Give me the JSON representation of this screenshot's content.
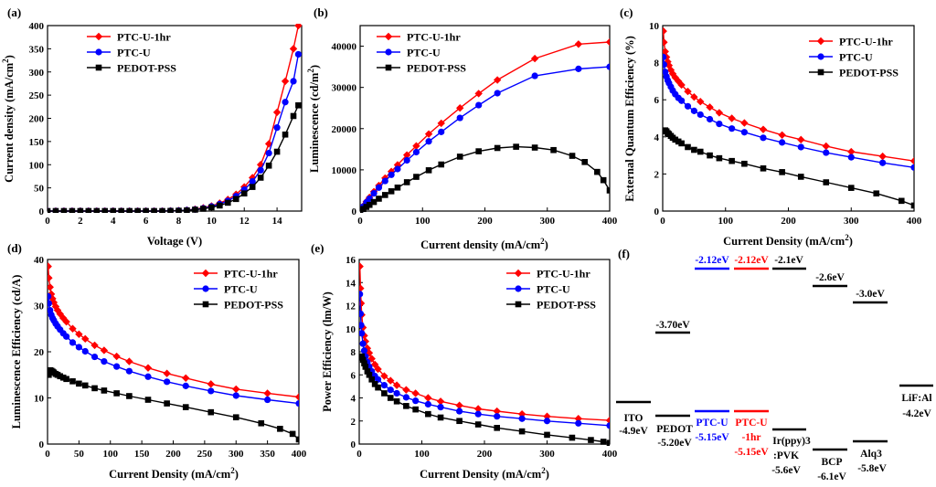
{
  "colors": {
    "red": "#ff0000",
    "blue": "#0000ff",
    "black": "#000000"
  },
  "chart_data": [
    {
      "id": "a",
      "type": "line",
      "panel_label": "(a)",
      "xlabel": "Voltage (V)",
      "ylabel": "Current density (mA/cm²)",
      "xlim": [
        0,
        15.5
      ],
      "ylim": [
        0,
        400
      ],
      "xticks": [
        0,
        2,
        4,
        6,
        8,
        10,
        12,
        14
      ],
      "yticks": [
        0,
        50,
        100,
        150,
        200,
        250,
        300,
        350,
        400
      ],
      "legend_position": "top-left",
      "series": [
        {
          "name": "PTC-U-1hr",
          "color": "#ff0000",
          "marker": "diamond",
          "x": [
            0,
            0.5,
            1,
            1.5,
            2,
            2.5,
            3,
            3.5,
            4,
            4.5,
            5,
            5.5,
            6,
            6.5,
            7,
            7.5,
            8,
            8.5,
            9,
            9.5,
            10,
            10.5,
            11,
            11.5,
            12,
            12.5,
            13,
            13.5,
            14,
            14.5,
            15,
            15.3
          ],
          "y": [
            0,
            0,
            0,
            0,
            0,
            0,
            0,
            0,
            0,
            0,
            0,
            0,
            0,
            0,
            0,
            0.5,
            1,
            2,
            4,
            7,
            11,
            17,
            25,
            36,
            52,
            72,
            100,
            145,
            213,
            280,
            350,
            400
          ]
        },
        {
          "name": "PTC-U",
          "color": "#0000ff",
          "marker": "circle",
          "x": [
            0,
            0.5,
            1,
            1.5,
            2,
            2.5,
            3,
            3.5,
            4,
            4.5,
            5,
            5.5,
            6,
            6.5,
            7,
            7.5,
            8,
            8.5,
            9,
            9.5,
            10,
            10.5,
            11,
            11.5,
            12,
            12.5,
            13,
            13.5,
            14,
            14.5,
            15,
            15.3
          ],
          "y": [
            0,
            0,
            0,
            0,
            0,
            0,
            0,
            0,
            0,
            0,
            0,
            0,
            0,
            0,
            0,
            0.5,
            1,
            2,
            3.5,
            6,
            10,
            15,
            22,
            32,
            46,
            64,
            88,
            125,
            180,
            235,
            280,
            338
          ]
        },
        {
          "name": "PEDOT-PSS",
          "color": "#000000",
          "marker": "square",
          "x": [
            0,
            0.5,
            1,
            1.5,
            2,
            2.5,
            3,
            3.5,
            4,
            4.5,
            5,
            5.5,
            6,
            6.5,
            7,
            7.5,
            8,
            8.5,
            9,
            9.5,
            10,
            10.5,
            11,
            11.5,
            12,
            12.5,
            13,
            13.5,
            14,
            14.5,
            15,
            15.3
          ],
          "y": [
            0,
            0,
            0,
            0,
            0,
            0,
            0,
            0,
            0,
            0,
            0,
            0,
            0,
            0,
            0,
            0.3,
            0.7,
            1.5,
            3,
            5,
            8,
            12,
            18,
            26,
            38,
            52,
            72,
            98,
            128,
            165,
            205,
            228
          ]
        }
      ]
    },
    {
      "id": "b",
      "type": "line",
      "panel_label": "(b)",
      "xlabel": "Current density (mA/cm²)",
      "ylabel": "Luminescence (cd/m²)",
      "xlim": [
        0,
        400
      ],
      "ylim": [
        0,
        45000
      ],
      "xticks": [
        0,
        100,
        200,
        300,
        400
      ],
      "yticks": [
        0,
        10000,
        20000,
        30000,
        40000
      ],
      "legend_position": "top-left",
      "series": [
        {
          "name": "PTC-U-1hr",
          "color": "#ff0000",
          "marker": "diamond",
          "x": [
            0,
            5,
            10,
            15,
            22,
            30,
            40,
            50,
            60,
            75,
            90,
            110,
            130,
            160,
            190,
            220,
            280,
            350,
            400
          ],
          "y": [
            0,
            1200,
            2300,
            3300,
            4700,
            6200,
            8000,
            9600,
            11200,
            13600,
            15800,
            18700,
            21300,
            25000,
            28500,
            31800,
            37000,
            40500,
            41000
          ]
        },
        {
          "name": "PTC-U",
          "color": "#0000ff",
          "marker": "circle",
          "x": [
            0,
            5,
            10,
            15,
            22,
            30,
            40,
            50,
            60,
            75,
            90,
            110,
            130,
            160,
            190,
            220,
            280,
            350,
            400
          ],
          "y": [
            0,
            1100,
            2100,
            3000,
            4300,
            5700,
            7300,
            8800,
            10200,
            12300,
            14300,
            16900,
            19200,
            22600,
            25700,
            28600,
            32800,
            34500,
            35000
          ]
        },
        {
          "name": "PEDOT-PSS",
          "color": "#000000",
          "marker": "square",
          "x": [
            0,
            5,
            10,
            15,
            22,
            30,
            40,
            50,
            60,
            75,
            90,
            110,
            130,
            160,
            190,
            220,
            250,
            280,
            310,
            340,
            360,
            380,
            390,
            400
          ],
          "y": [
            0,
            500,
            1000,
            1500,
            2200,
            3000,
            3900,
            4800,
            5700,
            7000,
            8300,
            9900,
            11300,
            13200,
            14500,
            15300,
            15600,
            15400,
            14800,
            13400,
            11900,
            9500,
            7500,
            5000
          ]
        }
      ]
    },
    {
      "id": "c",
      "type": "line",
      "panel_label": "(c)",
      "xlabel": "Current Density (mA/cm²)",
      "ylabel": "External Quantum Efficiency (%)",
      "xlim": [
        0,
        400
      ],
      "ylim": [
        0,
        10
      ],
      "xticks": [
        0,
        100,
        200,
        300,
        400
      ],
      "yticks": [
        0,
        2,
        4,
        6,
        8,
        10
      ],
      "legend_position": "top-right",
      "series": [
        {
          "name": "PTC-U-1hr",
          "color": "#ff0000",
          "marker": "diamond",
          "x": [
            1,
            2,
            4,
            6,
            8,
            10,
            13,
            16,
            20,
            25,
            30,
            40,
            50,
            60,
            75,
            90,
            110,
            130,
            160,
            190,
            220,
            260,
            300,
            350,
            400
          ],
          "y": [
            9.7,
            9.1,
            8.6,
            8.3,
            8.05,
            7.85,
            7.6,
            7.4,
            7.2,
            7.0,
            6.8,
            6.45,
            6.15,
            5.9,
            5.6,
            5.3,
            5.0,
            4.75,
            4.4,
            4.1,
            3.85,
            3.5,
            3.2,
            2.95,
            2.7
          ]
        },
        {
          "name": "PTC-U",
          "color": "#0000ff",
          "marker": "circle",
          "x": [
            1,
            2,
            4,
            6,
            8,
            10,
            13,
            16,
            20,
            25,
            30,
            40,
            50,
            60,
            75,
            90,
            110,
            130,
            160,
            190,
            220,
            260,
            300,
            350,
            400
          ],
          "y": [
            8.3,
            7.9,
            7.5,
            7.25,
            7.05,
            6.9,
            6.7,
            6.5,
            6.3,
            6.1,
            5.95,
            5.65,
            5.4,
            5.2,
            4.95,
            4.7,
            4.45,
            4.25,
            3.95,
            3.7,
            3.45,
            3.15,
            2.9,
            2.6,
            2.35
          ]
        },
        {
          "name": "PEDOT-PSS",
          "color": "#000000",
          "marker": "square",
          "x": [
            2,
            4,
            6,
            8,
            10,
            13,
            16,
            20,
            25,
            30,
            40,
            50,
            60,
            75,
            90,
            110,
            130,
            160,
            190,
            220,
            260,
            300,
            340,
            380,
            400
          ],
          "y": [
            4.3,
            4.35,
            4.3,
            4.2,
            4.15,
            4.05,
            3.95,
            3.85,
            3.75,
            3.65,
            3.45,
            3.3,
            3.2,
            3.0,
            2.85,
            2.7,
            2.55,
            2.3,
            2.1,
            1.85,
            1.55,
            1.25,
            0.95,
            0.55,
            0.3
          ]
        }
      ]
    },
    {
      "id": "d",
      "type": "line",
      "panel_label": "(d)",
      "xlabel": "Current Density (mA/cm²)",
      "ylabel": "Luminescence Efficiency (cd/A)",
      "xlim": [
        0,
        400
      ],
      "ylim": [
        0,
        40
      ],
      "xticks": [
        0,
        50,
        100,
        150,
        200,
        250,
        300,
        350,
        400
      ],
      "yticks": [
        0,
        10,
        20,
        30,
        40
      ],
      "legend_position": "top-right",
      "series": [
        {
          "name": "PTC-U-1hr",
          "color": "#ff0000",
          "marker": "diamond",
          "x": [
            1,
            2,
            4,
            6,
            8,
            10,
            13,
            16,
            20,
            25,
            30,
            40,
            50,
            60,
            75,
            90,
            110,
            130,
            160,
            190,
            220,
            260,
            300,
            350,
            400
          ],
          "y": [
            38.5,
            36,
            34,
            32.5,
            31.5,
            30.7,
            29.8,
            29,
            28.2,
            27.3,
            26.5,
            25,
            23.8,
            22.8,
            21.4,
            20.3,
            19,
            17.9,
            16.5,
            15.3,
            14.3,
            13,
            11.9,
            11,
            10.2
          ]
        },
        {
          "name": "PTC-U",
          "color": "#0000ff",
          "marker": "circle",
          "x": [
            1,
            2,
            4,
            6,
            8,
            10,
            13,
            16,
            20,
            25,
            30,
            40,
            50,
            60,
            75,
            90,
            110,
            130,
            160,
            190,
            220,
            260,
            300,
            350,
            400
          ],
          "y": [
            32,
            30.5,
            29,
            28,
            27.3,
            26.8,
            26.1,
            25.5,
            24.8,
            24,
            23.3,
            22,
            21,
            20.1,
            18.9,
            17.9,
            16.8,
            15.8,
            14.6,
            13.5,
            12.6,
            11.5,
            10.5,
            9.6,
            8.8
          ]
        },
        {
          "name": "PEDOT-PSS",
          "color": "#000000",
          "marker": "square",
          "x": [
            2,
            4,
            6,
            8,
            10,
            13,
            16,
            20,
            25,
            30,
            40,
            50,
            60,
            75,
            90,
            110,
            130,
            160,
            190,
            220,
            260,
            300,
            340,
            370,
            390,
            400
          ],
          "y": [
            15,
            16,
            15.9,
            15.7,
            15.5,
            15.2,
            15,
            14.7,
            14.4,
            14.1,
            13.6,
            13.1,
            12.7,
            12.1,
            11.6,
            11,
            10.4,
            9.6,
            8.8,
            8,
            6.9,
            5.8,
            4.5,
            3.3,
            2.2,
            1
          ]
        }
      ]
    },
    {
      "id": "e",
      "type": "line",
      "panel_label": "(e)",
      "xlabel": "Current Density (mA/cm²)",
      "ylabel": "Power Efficiency (lm/W)",
      "xlim": [
        0,
        400
      ],
      "ylim": [
        0,
        16
      ],
      "xticks": [
        0,
        100,
        200,
        300,
        400
      ],
      "yticks": [
        0,
        2,
        4,
        6,
        8,
        10,
        12,
        14,
        16
      ],
      "legend_position": "top-right",
      "series": [
        {
          "name": "PTC-U-1hr",
          "color": "#ff0000",
          "marker": "diamond",
          "x": [
            1,
            2,
            3,
            4,
            6,
            8,
            10,
            13,
            16,
            20,
            25,
            30,
            40,
            50,
            60,
            75,
            90,
            110,
            130,
            160,
            190,
            220,
            260,
            300,
            350,
            400
          ],
          "y": [
            15.4,
            13.5,
            12.2,
            11.2,
            10.1,
            9.4,
            8.9,
            8.3,
            7.9,
            7.4,
            6.9,
            6.5,
            5.9,
            5.5,
            5.1,
            4.7,
            4.4,
            4.0,
            3.7,
            3.35,
            3.05,
            2.85,
            2.6,
            2.4,
            2.2,
            2.05
          ]
        },
        {
          "name": "PTC-U",
          "color": "#0000ff",
          "marker": "circle",
          "x": [
            1,
            2,
            3,
            4,
            6,
            8,
            10,
            13,
            16,
            20,
            25,
            30,
            40,
            50,
            60,
            75,
            90,
            110,
            130,
            160,
            190,
            220,
            260,
            300,
            350,
            400
          ],
          "y": [
            13,
            11.3,
            10.3,
            9.6,
            8.7,
            8.1,
            7.6,
            7.1,
            6.7,
            6.3,
            5.9,
            5.6,
            5.1,
            4.7,
            4.4,
            4.05,
            3.75,
            3.45,
            3.2,
            2.85,
            2.6,
            2.4,
            2.2,
            2.0,
            1.8,
            1.6
          ]
        },
        {
          "name": "PEDOT-PSS",
          "color": "#000000",
          "marker": "square",
          "x": [
            2,
            4,
            6,
            8,
            10,
            13,
            16,
            20,
            25,
            30,
            40,
            50,
            60,
            75,
            90,
            110,
            130,
            160,
            190,
            220,
            260,
            300,
            340,
            370,
            390,
            400
          ],
          "y": [
            7.5,
            7.6,
            7.3,
            7.0,
            6.7,
            6.3,
            6.0,
            5.6,
            5.2,
            4.9,
            4.4,
            4.0,
            3.7,
            3.3,
            3.0,
            2.6,
            2.3,
            2.0,
            1.7,
            1.4,
            1.1,
            0.8,
            0.55,
            0.35,
            0.2,
            0.1
          ]
        }
      ]
    }
  ],
  "energy_diagram": {
    "panel_label": "(f)",
    "items": [
      {
        "name": "ito",
        "color": "#000000",
        "level_label": "",
        "layer": "ITO",
        "bottom": "-4.9eV"
      },
      {
        "name": "pedot",
        "color": "#000000",
        "level_label": "-3.70eV",
        "layer": "PEDOT",
        "bottom": "-5.20eV"
      },
      {
        "name": "ptc-u",
        "color": "#0000ff",
        "level_label": "-2.12eV",
        "layer": "PTC-U",
        "bottom": "-5.15eV"
      },
      {
        "name": "ptc-u-1hr",
        "color": "#ff0000",
        "level_label": "-2.12eV",
        "layer": "PTC-U",
        "layer2": "-1hr",
        "bottom": "-5.15eV"
      },
      {
        "name": "irppy",
        "color": "#000000",
        "level_label": "-2.1eV",
        "layer": "Ir(ppy)3",
        "layer2": ":PVK",
        "bottom": "-5.6eV"
      },
      {
        "name": "bcp",
        "color": "#000000",
        "level_label": "-2.6eV",
        "layer": "BCP",
        "bottom": "-6.1eV"
      },
      {
        "name": "alq3",
        "color": "#000000",
        "level_label": "-3.0eV",
        "layer": "Alq3",
        "bottom": "-5.8eV"
      },
      {
        "name": "lifal",
        "color": "#000000",
        "level_label": "",
        "layer": "LiF:Al",
        "bottom": "-4.2eV"
      }
    ]
  }
}
